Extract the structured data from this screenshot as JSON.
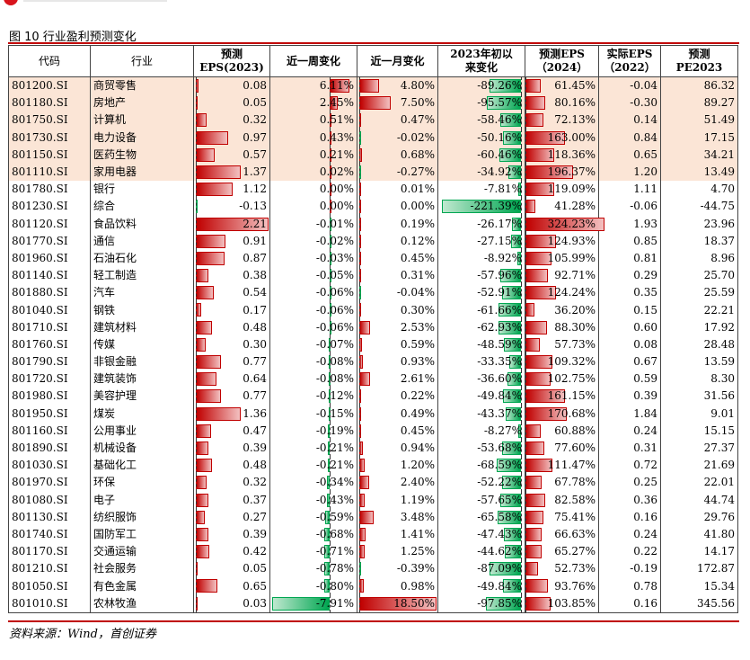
{
  "figure_title": "图 10 行业盈利预测变化",
  "source": "资料来源：Wind，首创证券",
  "columns": [
    "代码",
    "行业",
    "预测\nEPS(2023)",
    "近一周变化",
    "近一月变化",
    "2023年初以\n来变化",
    "预测EPS\n（2024）",
    "实际EPS\n（2022）",
    "预测\nPE2023"
  ],
  "colors": {
    "positive_bar": "#c00000",
    "negative_bar": "#00a651",
    "highlight_row": "#fbe5d6",
    "rule": "#c00000"
  },
  "rows": [
    {
      "code": "801200.SI",
      "name": "商贸零售",
      "eps2023": "0.08",
      "week": "6.11%",
      "month": "4.80%",
      "ytd": "-89.26%",
      "eps2024": "61.45%",
      "eps2022": "-0.04",
      "pe": "86.32",
      "hl": true
    },
    {
      "code": "801180.SI",
      "name": "房地产",
      "eps2023": "0.05",
      "week": "2.45%",
      "month": "7.50%",
      "ytd": "-95.57%",
      "eps2024": "80.16%",
      "eps2022": "-0.30",
      "pe": "89.27",
      "hl": true
    },
    {
      "code": "801750.SI",
      "name": "计算机",
      "eps2023": "0.32",
      "week": "0.51%",
      "month": "0.47%",
      "ytd": "-58.46%",
      "eps2024": "72.13%",
      "eps2022": "0.14",
      "pe": "51.49",
      "hl": true
    },
    {
      "code": "801730.SI",
      "name": "电力设备",
      "eps2023": "0.97",
      "week": "0.43%",
      "month": "-0.02%",
      "ytd": "-50.16%",
      "eps2024": "163.00%",
      "eps2022": "0.84",
      "pe": "17.15",
      "hl": true
    },
    {
      "code": "801150.SI",
      "name": "医药生物",
      "eps2023": "0.57",
      "week": "0.21%",
      "month": "0.68%",
      "ytd": "-60.46%",
      "eps2024": "118.36%",
      "eps2022": "0.65",
      "pe": "34.21",
      "hl": true
    },
    {
      "code": "801110.SI",
      "name": "家用电器",
      "eps2023": "1.37",
      "week": "0.02%",
      "month": "-0.27%",
      "ytd": "-34.92%",
      "eps2024": "196.37%",
      "eps2022": "1.20",
      "pe": "13.49",
      "hl": true
    },
    {
      "code": "801780.SI",
      "name": "银行",
      "eps2023": "1.12",
      "week": "0.00%",
      "month": "0.01%",
      "ytd": "-7.81%",
      "eps2024": "119.09%",
      "eps2022": "1.11",
      "pe": "4.70",
      "hl": false
    },
    {
      "code": "801230.SI",
      "name": "综合",
      "eps2023": "-0.13",
      "week": "0.00%",
      "month": "0.00%",
      "ytd": "-221.39%",
      "eps2024": "41.28%",
      "eps2022": "-0.06",
      "pe": "-44.75",
      "hl": false
    },
    {
      "code": "801120.SI",
      "name": "食品饮料",
      "eps2023": "2.21",
      "week": "-0.01%",
      "month": "0.19%",
      "ytd": "-26.17%",
      "eps2024": "324.23%",
      "eps2022": "1.93",
      "pe": "23.96",
      "hl": false
    },
    {
      "code": "801770.SI",
      "name": "通信",
      "eps2023": "0.91",
      "week": "-0.02%",
      "month": "0.12%",
      "ytd": "-27.15%",
      "eps2024": "124.93%",
      "eps2022": "0.85",
      "pe": "18.37",
      "hl": false
    },
    {
      "code": "801960.SI",
      "name": "石油石化",
      "eps2023": "0.87",
      "week": "-0.03%",
      "month": "0.45%",
      "ytd": "-8.92%",
      "eps2024": "105.99%",
      "eps2022": "0.81",
      "pe": "8.96",
      "hl": false
    },
    {
      "code": "801140.SI",
      "name": "轻工制造",
      "eps2023": "0.38",
      "week": "-0.05%",
      "month": "0.31%",
      "ytd": "-57.96%",
      "eps2024": "92.71%",
      "eps2022": "0.29",
      "pe": "25.70",
      "hl": false
    },
    {
      "code": "801880.SI",
      "name": "汽车",
      "eps2023": "0.54",
      "week": "-0.06%",
      "month": "-0.04%",
      "ytd": "-52.91%",
      "eps2024": "124.24%",
      "eps2022": "0.35",
      "pe": "25.59",
      "hl": false
    },
    {
      "code": "801040.SI",
      "name": "钢铁",
      "eps2023": "0.17",
      "week": "-0.06%",
      "month": "0.30%",
      "ytd": "-61.66%",
      "eps2024": "36.20%",
      "eps2022": "0.15",
      "pe": "22.21",
      "hl": false
    },
    {
      "code": "801710.SI",
      "name": "建筑材料",
      "eps2023": "0.48",
      "week": "-0.06%",
      "month": "2.53%",
      "ytd": "-62.93%",
      "eps2024": "88.30%",
      "eps2022": "0.60",
      "pe": "17.92",
      "hl": false
    },
    {
      "code": "801760.SI",
      "name": "传媒",
      "eps2023": "0.30",
      "week": "-0.07%",
      "month": "0.59%",
      "ytd": "-48.59%",
      "eps2024": "57.73%",
      "eps2022": "0.08",
      "pe": "28.48",
      "hl": false
    },
    {
      "code": "801790.SI",
      "name": "非银金融",
      "eps2023": "0.77",
      "week": "-0.08%",
      "month": "0.93%",
      "ytd": "-33.35%",
      "eps2024": "109.32%",
      "eps2022": "0.67",
      "pe": "13.59",
      "hl": false
    },
    {
      "code": "801720.SI",
      "name": "建筑装饰",
      "eps2023": "0.64",
      "week": "-0.08%",
      "month": "2.61%",
      "ytd": "-36.60%",
      "eps2024": "102.75%",
      "eps2022": "0.59",
      "pe": "8.30",
      "hl": false
    },
    {
      "code": "801980.SI",
      "name": "美容护理",
      "eps2023": "0.77",
      "week": "-0.12%",
      "month": "0.22%",
      "ytd": "-49.84%",
      "eps2024": "161.15%",
      "eps2022": "0.39",
      "pe": "31.56",
      "hl": false
    },
    {
      "code": "801950.SI",
      "name": "煤炭",
      "eps2023": "1.36",
      "week": "-0.15%",
      "month": "0.49%",
      "ytd": "-43.37%",
      "eps2024": "170.68%",
      "eps2022": "1.84",
      "pe": "9.01",
      "hl": false
    },
    {
      "code": "801160.SI",
      "name": "公用事业",
      "eps2023": "0.47",
      "week": "-0.19%",
      "month": "0.45%",
      "ytd": "-8.27%",
      "eps2024": "60.88%",
      "eps2022": "0.24",
      "pe": "15.15",
      "hl": false
    },
    {
      "code": "801890.SI",
      "name": "机械设备",
      "eps2023": "0.39",
      "week": "-0.21%",
      "month": "0.94%",
      "ytd": "-53.68%",
      "eps2024": "77.60%",
      "eps2022": "0.31",
      "pe": "27.37",
      "hl": false
    },
    {
      "code": "801030.SI",
      "name": "基础化工",
      "eps2023": "0.48",
      "week": "-0.21%",
      "month": "1.20%",
      "ytd": "-68.59%",
      "eps2024": "111.47%",
      "eps2022": "0.72",
      "pe": "21.69",
      "hl": false
    },
    {
      "code": "801970.SI",
      "name": "环保",
      "eps2023": "0.32",
      "week": "-0.34%",
      "month": "2.40%",
      "ytd": "-52.22%",
      "eps2024": "67.78%",
      "eps2022": "0.25",
      "pe": "22.01",
      "hl": false
    },
    {
      "code": "801080.SI",
      "name": "电子",
      "eps2023": "0.37",
      "week": "-0.43%",
      "month": "1.19%",
      "ytd": "-57.65%",
      "eps2024": "82.58%",
      "eps2022": "0.36",
      "pe": "44.74",
      "hl": false
    },
    {
      "code": "801130.SI",
      "name": "纺织服饰",
      "eps2023": "0.27",
      "week": "-0.59%",
      "month": "3.48%",
      "ytd": "-65.58%",
      "eps2024": "75.41%",
      "eps2022": "0.16",
      "pe": "29.76",
      "hl": false
    },
    {
      "code": "801740.SI",
      "name": "国防军工",
      "eps2023": "0.39",
      "week": "-0.68%",
      "month": "1.41%",
      "ytd": "-47.43%",
      "eps2024": "66.63%",
      "eps2022": "0.24",
      "pe": "41.80",
      "hl": false
    },
    {
      "code": "801170.SI",
      "name": "交通运输",
      "eps2023": "0.42",
      "week": "-0.71%",
      "month": "1.25%",
      "ytd": "-44.62%",
      "eps2024": "65.27%",
      "eps2022": "0.22",
      "pe": "14.17",
      "hl": false
    },
    {
      "code": "801210.SI",
      "name": "社会服务",
      "eps2023": "0.05",
      "week": "-0.78%",
      "month": "-0.39%",
      "ytd": "-87.09%",
      "eps2024": "52.73%",
      "eps2022": "-0.19",
      "pe": "172.87",
      "hl": false
    },
    {
      "code": "801050.SI",
      "name": "有色金属",
      "eps2023": "0.65",
      "week": "-0.80%",
      "month": "0.98%",
      "ytd": "-49.84%",
      "eps2024": "93.76%",
      "eps2022": "0.78",
      "pe": "15.34",
      "hl": false
    },
    {
      "code": "801010.SI",
      "name": "农林牧渔",
      "eps2023": "0.03",
      "week": "-7.91%",
      "month": "18.50%",
      "ytd": "-97.85%",
      "eps2024": "103.85%",
      "eps2022": "0.16",
      "pe": "345.56",
      "hl": false
    }
  ]
}
